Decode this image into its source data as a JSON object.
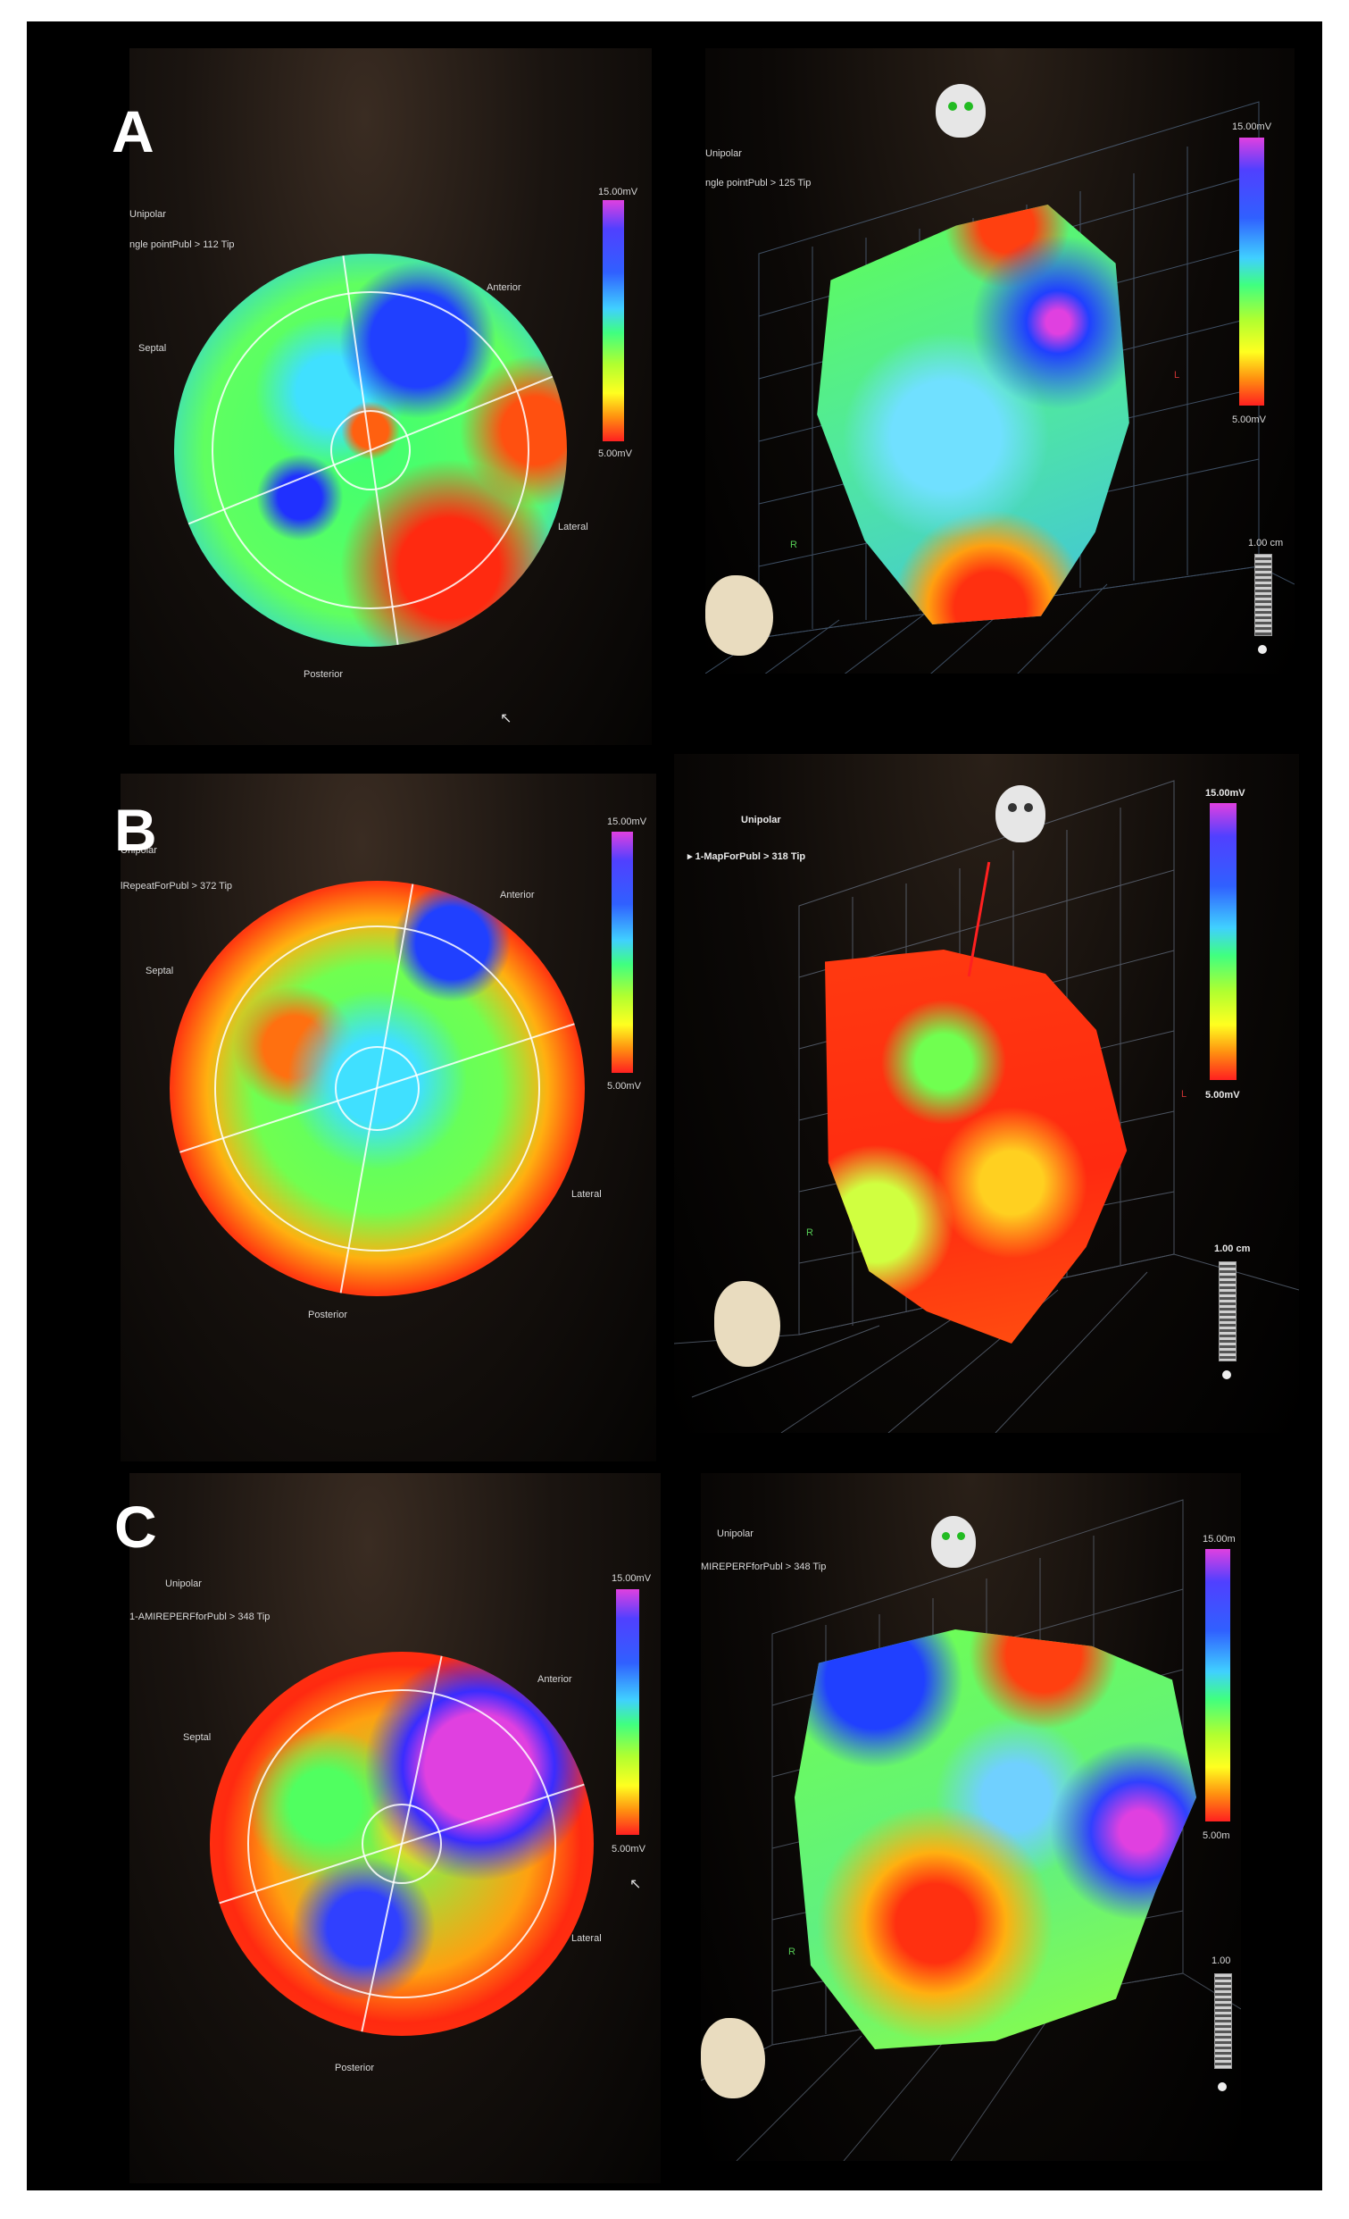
{
  "panels": {
    "A": {
      "letter": "A",
      "left": {
        "mode": "Unipolar",
        "map": "ngle pointPubl > 112 Tip",
        "scale_max": "15.00mV",
        "scale_min": "5.00mV",
        "labels": {
          "anterior": "Anterior",
          "septal": "Septal",
          "lateral": "Lateral",
          "posterior": "Posterior"
        }
      },
      "right": {
        "mode": "Unipolar",
        "map": "ngle pointPubl > 125 Tip",
        "scale_max": "15.00mV",
        "scale_min": "5.00mV",
        "scale_length": "1.00 cm",
        "axis_r": "R",
        "axis_l": "L"
      }
    },
    "B": {
      "letter": "B",
      "left": {
        "mode": "Unipolar",
        "map": "lRepeatForPubl > 372 Tip",
        "scale_max": "15.00mV",
        "scale_min": "5.00mV",
        "labels": {
          "anterior": "Anterior",
          "septal": "Septal",
          "lateral": "Lateral",
          "posterior": "Posterior"
        }
      },
      "right": {
        "mode": "Unipolar",
        "map": "1-MapForPubl > 318 Tip",
        "scale_max": "15.00mV",
        "scale_min": "5.00mV",
        "scale_length": "1.00 cm",
        "axis_r": "R",
        "axis_l": "L"
      }
    },
    "C": {
      "letter": "C",
      "left": {
        "mode": "Unipolar",
        "map": "1-AMIREPERFforPubl > 348 Tip",
        "scale_max": "15.00mV",
        "scale_min": "5.00mV",
        "labels": {
          "anterior": "Anterior",
          "septal": "Septal",
          "lateral": "Lateral",
          "posterior": "Posterior"
        }
      },
      "right": {
        "mode": "Unipolar",
        "map": "MIREPERFforPubl > 348 Tip",
        "scale_max": "15.00m",
        "scale_min": "5.00m",
        "scale_length": "1.00",
        "axis_r": "R"
      }
    }
  },
  "colors": {
    "low": "#ff2020",
    "mid": "#40ff80",
    "high": "#5040ff",
    "peak": "#e040e0"
  }
}
